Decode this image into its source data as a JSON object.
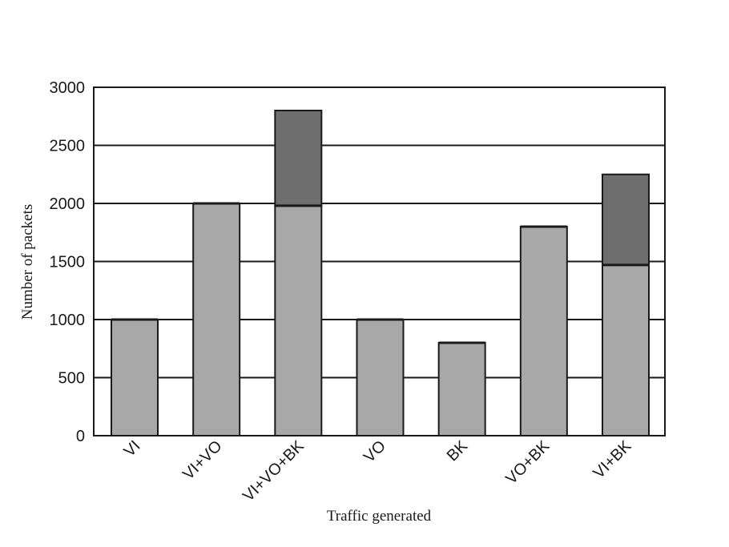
{
  "chart_data": {
    "type": "bar",
    "stacked": true,
    "title": "",
    "xlabel": "Traffic generated",
    "ylabel": "Number of packets",
    "ylim": [
      0,
      3000
    ],
    "yticks": [
      0,
      500,
      1000,
      1500,
      2000,
      2500,
      3000
    ],
    "grid": true,
    "categories": [
      "VI",
      "VI+VO",
      "VI+VO+BK",
      "VO",
      "BK",
      "VO+BK",
      "VI+BK"
    ],
    "series": [
      {
        "values": [
          1000,
          2000,
          1980,
          1000,
          800,
          1800,
          1470
        ],
        "color": "#a8a8a8"
      },
      {
        "values": [
          0,
          0,
          820,
          0,
          0,
          0,
          780
        ],
        "color": "#6e6e6e"
      }
    ]
  }
}
